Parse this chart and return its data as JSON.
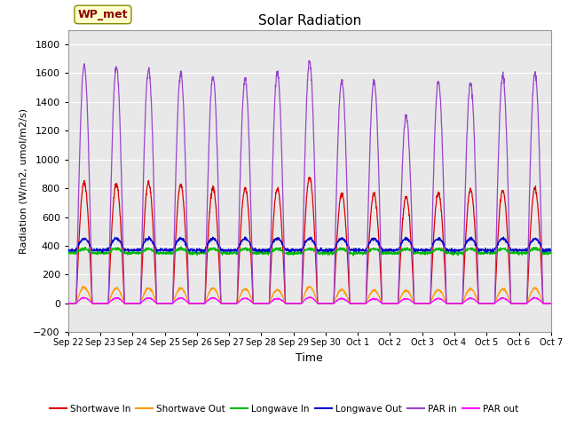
{
  "title": "Solar Radiation",
  "ylabel": "Radiation (W/m2, umol/m2/s)",
  "xlabel": "Time",
  "ylim": [
    -200,
    1900
  ],
  "yticks": [
    -200,
    0,
    200,
    400,
    600,
    800,
    1000,
    1200,
    1400,
    1600,
    1800
  ],
  "plot_bg": "#e8e8e8",
  "fig_bg": "#ffffff",
  "grid_color": "#ffffff",
  "legend_label": "WP_met",
  "series": {
    "shortwave_in": {
      "color": "#dd0000",
      "label": "Shortwave In"
    },
    "shortwave_out": {
      "color": "#ff9900",
      "label": "Shortwave Out"
    },
    "longwave_in": {
      "color": "#00bb00",
      "label": "Longwave In"
    },
    "longwave_out": {
      "color": "#0000cc",
      "label": "Longwave Out"
    },
    "par_in": {
      "color": "#9944cc",
      "label": "PAR in"
    },
    "par_out": {
      "color": "#ff00ff",
      "label": "PAR out"
    }
  },
  "n_days": 15,
  "day_labels": [
    "Sep 22",
    "Sep 23",
    "Sep 24",
    "Sep 25",
    "Sep 26",
    "Sep 27",
    "Sep 28",
    "Sep 29",
    "Sep 30",
    "Oct 1",
    "Oct 2",
    "Oct 3",
    "Oct 4",
    "Oct 5",
    "Oct 6",
    "Oct 7"
  ],
  "sw_in_peaks": [
    840,
    830,
    840,
    825,
    800,
    800,
    800,
    875,
    760,
    760,
    740,
    770,
    790,
    790,
    800
  ],
  "sw_out_peaks": [
    110,
    105,
    105,
    105,
    105,
    100,
    95,
    115,
    95,
    90,
    90,
    95,
    100,
    100,
    105
  ],
  "par_in_peaks": [
    1650,
    1640,
    1625,
    1600,
    1580,
    1560,
    1600,
    1680,
    1545,
    1545,
    1300,
    1540,
    1540,
    1580,
    1600
  ],
  "par_out_peaks": [
    40,
    38,
    38,
    38,
    38,
    36,
    34,
    42,
    34,
    32,
    32,
    34,
    36,
    36,
    38
  ],
  "lw_in_night": 350,
  "lw_out_night": 370,
  "lw_in_day_boost": 30,
  "lw_out_day_boost": 80
}
